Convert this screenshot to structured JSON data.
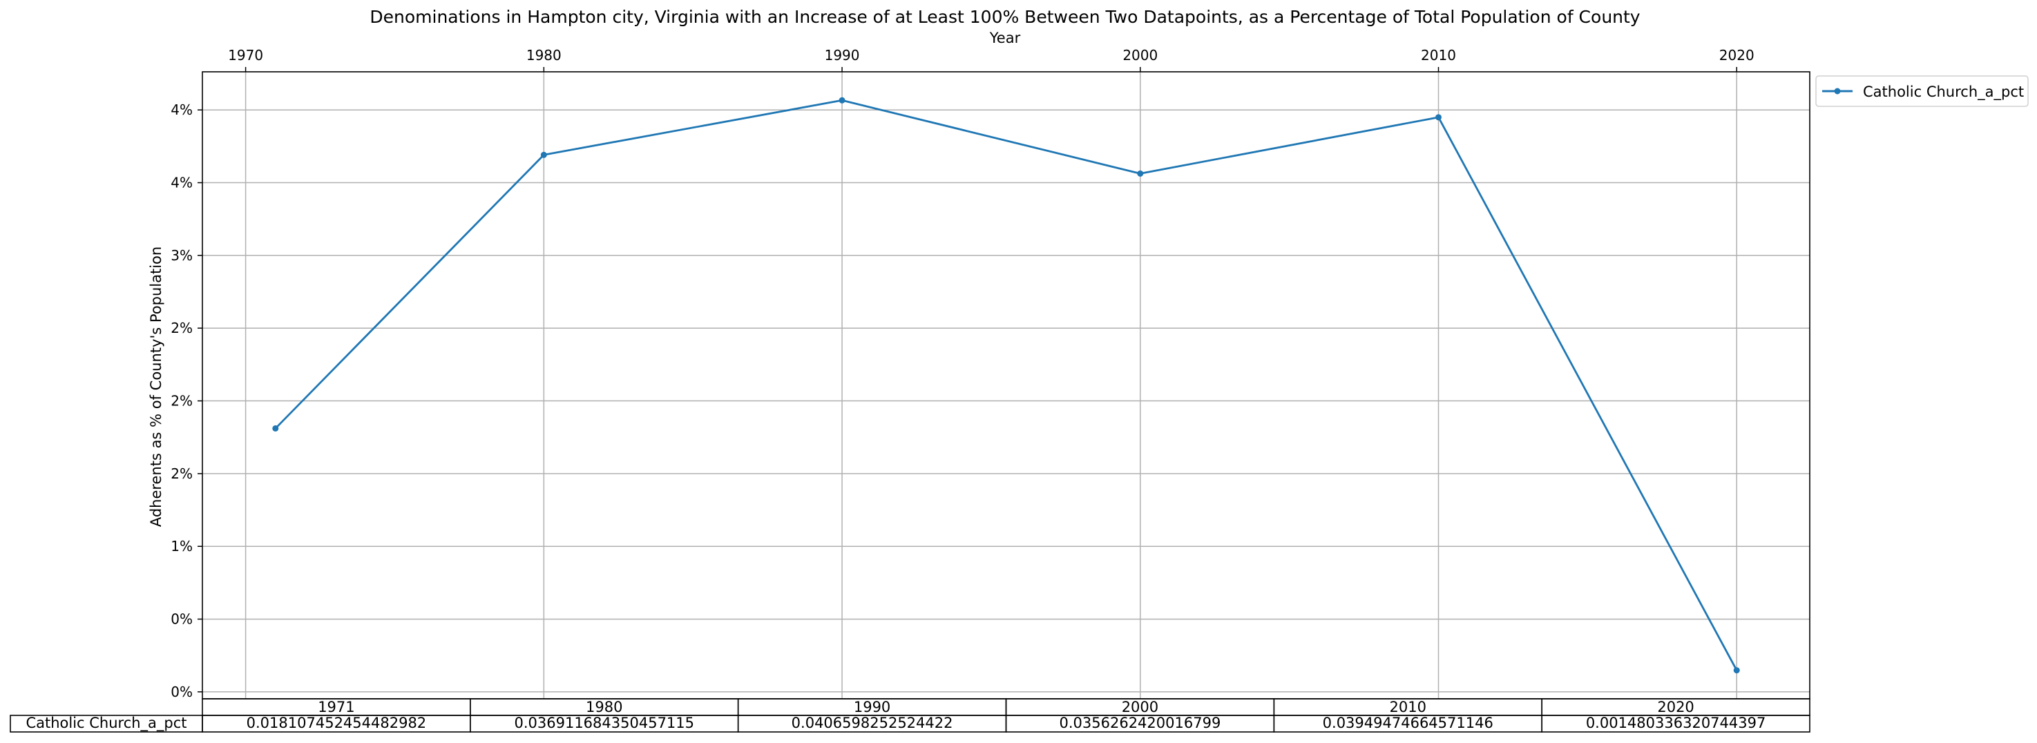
{
  "chart_data": {
    "type": "line",
    "title": "Denominations in Hampton city, Virginia with an Increase of at Least 100% Between Two Datapoints, as a Percentage of Total Population of County",
    "xlabel": "Year",
    "ylabel": "Adherents as % of County's Population",
    "x": [
      1971,
      1980,
      1990,
      2000,
      2010,
      2020
    ],
    "series": [
      {
        "name": "Catholic Church_a_pct",
        "values": [
          0.018107452454482982,
          0.036911684350457115,
          0.0406598252524422,
          0.0356262420016799,
          0.03949474664571146,
          0.001480336320744397
        ]
      }
    ],
    "xticks": [
      1970,
      1980,
      1990,
      2000,
      2010,
      2020
    ],
    "yticks": [
      0.0,
      0.005,
      0.01,
      0.015,
      0.02,
      0.025,
      0.03,
      0.035,
      0.04
    ],
    "ytick_labels": [
      "0%",
      "0%",
      "1%",
      "2%",
      "2%",
      "2%",
      "3%",
      "4%",
      "4%"
    ],
    "xlim": [
      1968.55,
      2022.45
    ],
    "ylim": [
      -0.000479,
      0.04262
    ],
    "grid": true,
    "x_axis_position": "top",
    "legend_position": "outside-top-right",
    "table": {
      "col_labels": [
        "1971",
        "1980",
        "1990",
        "2000",
        "2010",
        "2020"
      ],
      "row_label": "Catholic Church_a_pct",
      "cells": [
        "0.018107452454482982",
        "0.036911684350457115",
        "0.0406598252524422",
        "0.0356262420016799",
        "0.03949474664571146",
        "0.001480336320744397"
      ]
    },
    "colors": {
      "series": "#1f77b4",
      "grid": "#b0b0b0"
    }
  }
}
